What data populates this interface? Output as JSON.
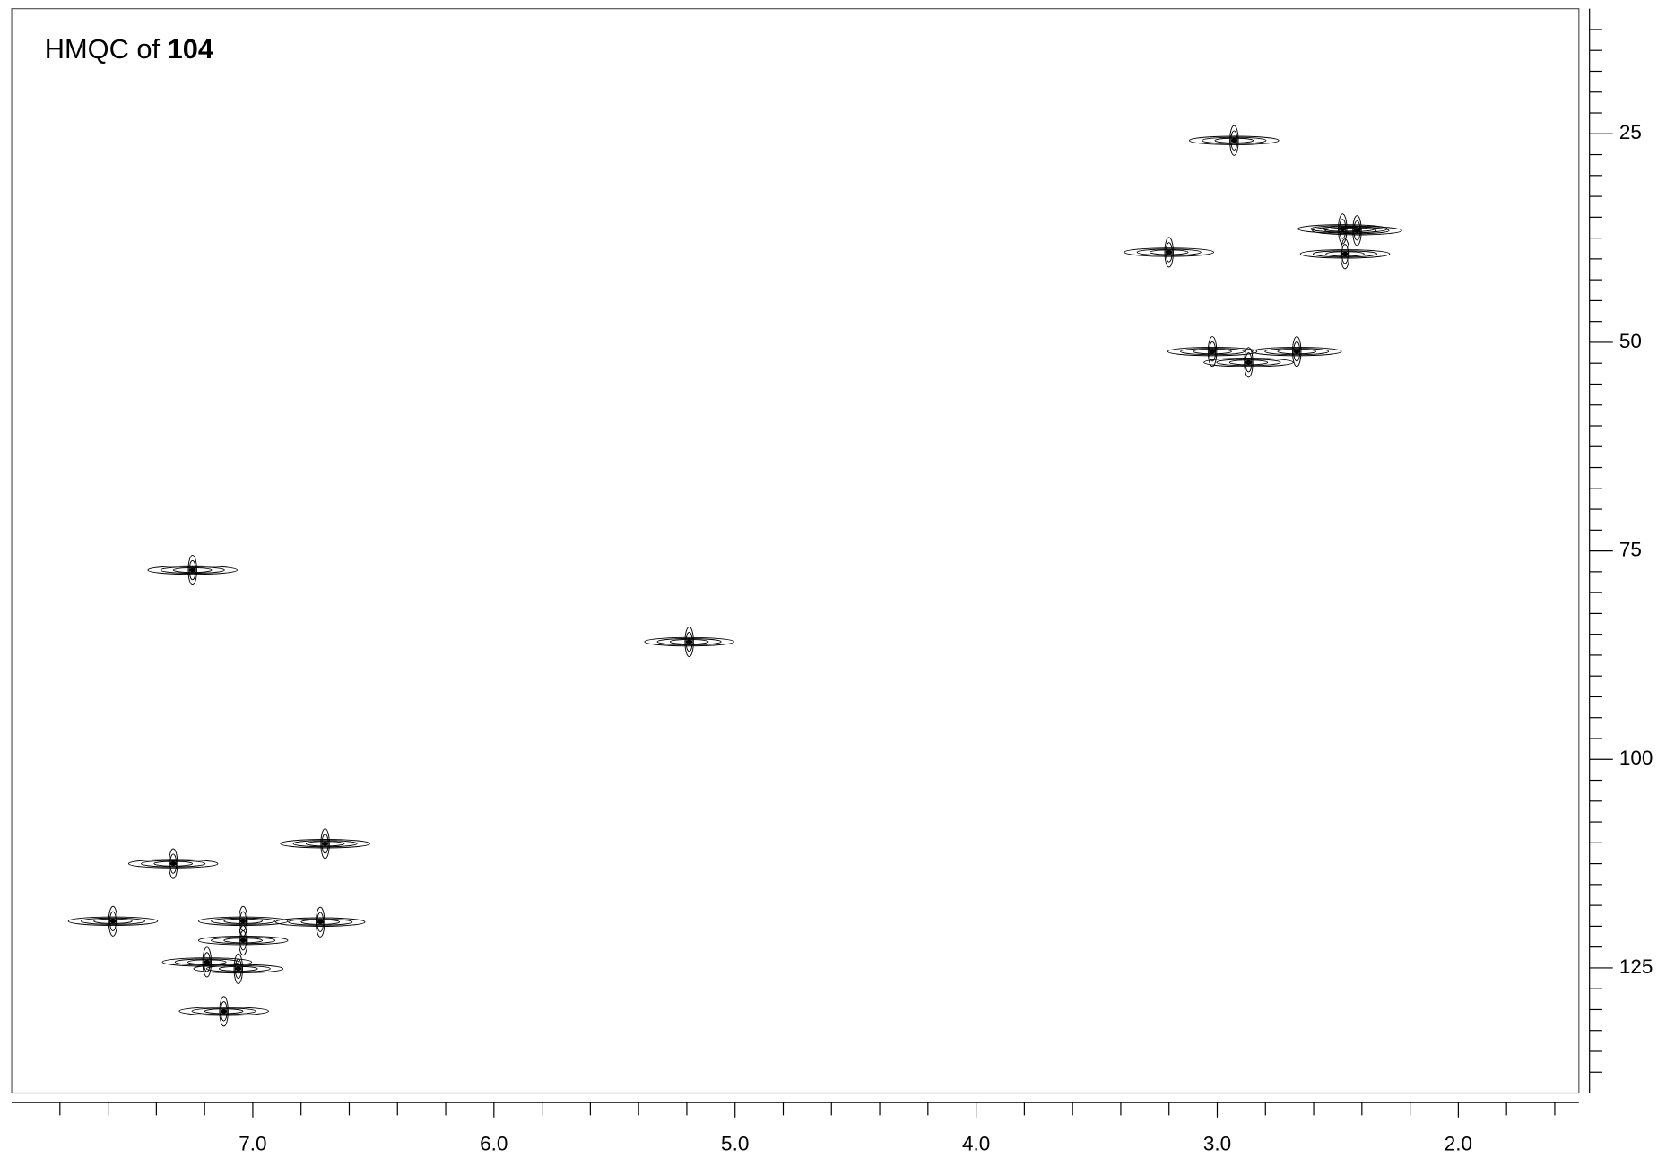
{
  "chart_data": {
    "type": "scatter",
    "title": "HMQC of",
    "compound": "104",
    "color": "#000000",
    "x": [
      2.93,
      2.48,
      2.42,
      3.2,
      2.47,
      2.87,
      3.02,
      2.67,
      5.19,
      7.25,
      6.7,
      7.33,
      7.58,
      7.04,
      6.72,
      7.04,
      7.19,
      7.06,
      7.12
    ],
    "values": [
      25.8,
      36.4,
      36.6,
      39.2,
      39.4,
      52.4,
      51.1,
      51.1,
      85.9,
      77.3,
      110.1,
      112.5,
      119.4,
      119.4,
      119.5,
      121.7,
      124.3,
      125.1,
      130.2
    ],
    "xlim": [
      8.0,
      1.5
    ],
    "ylim": [
      10,
      140
    ],
    "xticks": [
      {
        "value": 7,
        "label": "7.0"
      },
      {
        "value": 6,
        "label": "6.0"
      },
      {
        "value": 5,
        "label": "5.0"
      },
      {
        "value": 4,
        "label": "4.0"
      },
      {
        "value": 3,
        "label": "3.0"
      },
      {
        "value": 2,
        "label": "2.0"
      }
    ],
    "yticks": [
      25,
      50,
      75,
      100,
      125
    ],
    "xticks_minor": [
      7.8,
      7.6,
      7.4,
      7.2,
      6.8,
      6.6,
      6.4,
      6.2,
      5.8,
      5.6,
      5.4,
      5.2,
      4.8,
      4.6,
      4.4,
      4.2,
      3.8,
      3.6,
      3.4,
      3.2,
      2.8,
      2.6,
      2.4,
      2.2,
      1.8,
      1.6
    ],
    "yticks_minor": [
      12.5,
      15,
      17.5,
      20,
      22.5,
      27.5,
      30,
      32.5,
      35,
      37.5,
      40,
      42.5,
      45,
      47.5,
      52.5,
      55,
      57.5,
      60,
      62.5,
      65,
      67.5,
      70,
      72.5,
      77.5,
      80,
      82.5,
      85,
      87.5,
      90,
      92.5,
      95,
      97.5,
      102.5,
      105,
      107.5,
      110,
      112.5,
      115,
      117.5,
      120,
      122.5,
      127.5,
      130,
      132.5,
      135,
      137.5
    ],
    "grid": false
  }
}
